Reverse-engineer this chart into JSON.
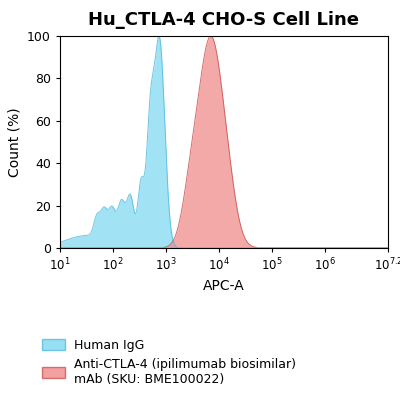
{
  "title": "Hu_CTLA-4 CHO-S Cell Line",
  "xlabel": "APC-A",
  "ylabel": "Count (%)",
  "ylim": [
    0,
    100
  ],
  "yticks": [
    0,
    20,
    40,
    60,
    80,
    100
  ],
  "xtick_positions": [
    1,
    2,
    3,
    4,
    5,
    6,
    7.2
  ],
  "blue_color": "#7DD8F0",
  "blue_edge": "#55BBDD",
  "red_color": "#F08888",
  "red_edge": "#CC5555",
  "blue_peak_log": 2.88,
  "red_peak_log": 3.85,
  "legend_blue": "Human IgG",
  "legend_red": "Anti-CTLA-4 (ipilimumab biosimilar)\nmAb (SKU: BME100022)",
  "background_color": "#ffffff",
  "title_fontsize": 13,
  "label_fontsize": 10
}
